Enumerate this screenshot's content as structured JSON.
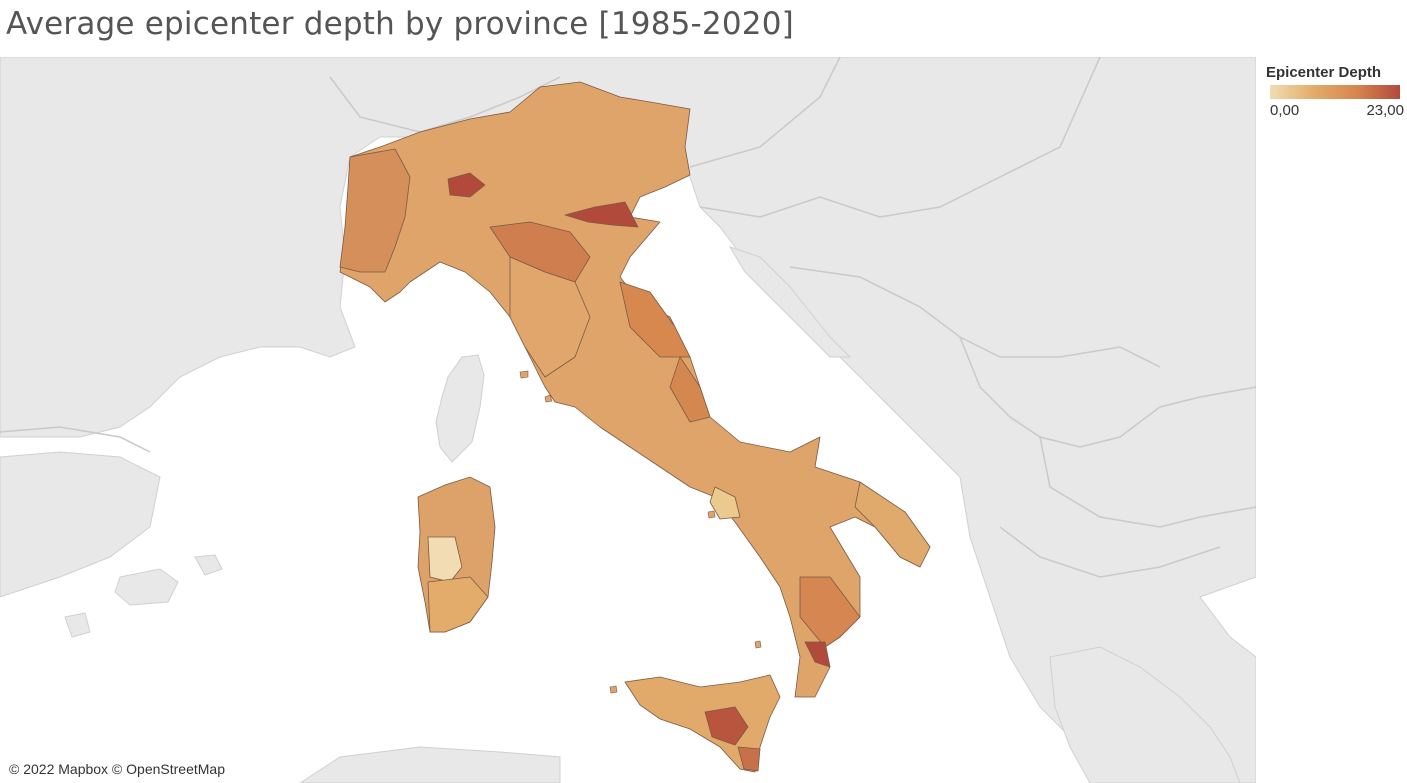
{
  "title": "Average epicenter depth by province [1985-2020]",
  "legend": {
    "title": "Epicenter Depth",
    "min_label": "0,00",
    "max_label": "23,00",
    "ramp_colors": [
      "#f1dcb4",
      "#e3ac6a",
      "#d7854f",
      "#b24a3c"
    ]
  },
  "attribution": "© 2022 Mapbox © OpenStreetMap",
  "map": {
    "basemap": "light-gray terrain",
    "land_color": "#e8e8e8",
    "sea_color": "#ffffff",
    "border_color": "#c8c8c8"
  },
  "regions": [
    {
      "name": "italy-mainland",
      "depth_level": "medium"
    },
    {
      "name": "sicily",
      "depth_level": "medium"
    },
    {
      "name": "sardinia",
      "depth_level": "medium"
    },
    {
      "name": "lombardy-deep-province",
      "depth_level": "high"
    },
    {
      "name": "ferrara-deep-province",
      "depth_level": "high"
    },
    {
      "name": "reggio-calabria-deep-province",
      "depth_level": "high"
    },
    {
      "name": "enna-catania-deep-province",
      "depth_level": "high"
    },
    {
      "name": "sardinia-shallow-province",
      "depth_level": "low"
    }
  ]
}
